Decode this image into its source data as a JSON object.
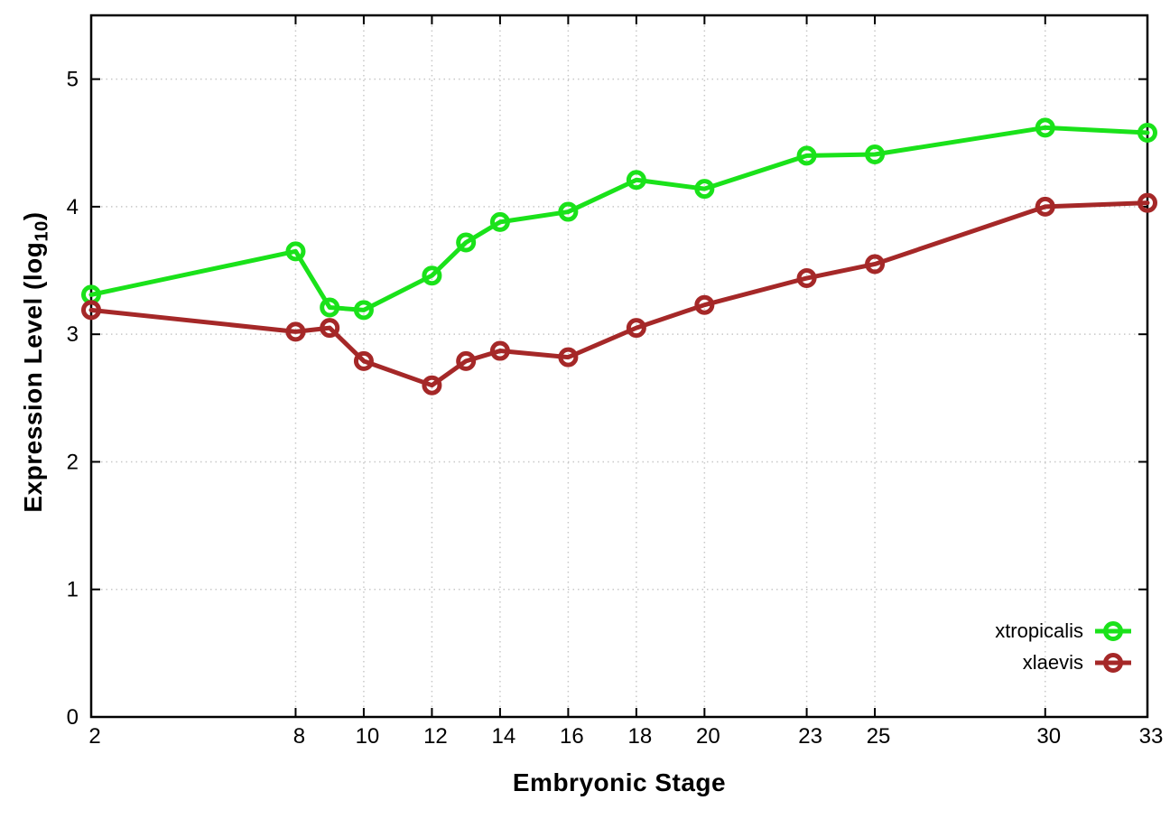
{
  "chart_data": {
    "type": "line",
    "title": "",
    "xlabel": "Embryonic Stage",
    "ylabel_main": "Expression Level (log",
    "ylabel_sub": "10",
    "ylabel_close": ")",
    "x": [
      2,
      8,
      9,
      10,
      12,
      13,
      14,
      16,
      18,
      20,
      23,
      25,
      30,
      33
    ],
    "series": [
      {
        "name": "xtropicalis",
        "color": "#1ae21a",
        "values": [
          3.31,
          3.65,
          3.21,
          3.19,
          3.46,
          3.72,
          3.88,
          3.96,
          4.21,
          4.14,
          4.4,
          4.41,
          4.62,
          4.58
        ]
      },
      {
        "name": "xlaevis",
        "color": "#a52828",
        "values": [
          3.19,
          3.02,
          3.05,
          2.79,
          2.6,
          2.79,
          2.87,
          2.82,
          3.05,
          3.23,
          3.44,
          3.55,
          4.0,
          4.03
        ]
      }
    ],
    "xticks": [
      2,
      8,
      10,
      12,
      14,
      16,
      18,
      20,
      23,
      25,
      30,
      33
    ],
    "yticks": [
      0,
      1,
      2,
      3,
      4,
      5
    ],
    "xlim": [
      2,
      33
    ],
    "ylim": [
      0,
      5.5
    ],
    "grid": true,
    "legend_position": "bottom-right",
    "marker": "open-circle",
    "style": {
      "grid_color": "#c8c8c8",
      "axis_color": "#000000",
      "tick_label_color": "#000000",
      "line_width": 5
    }
  }
}
